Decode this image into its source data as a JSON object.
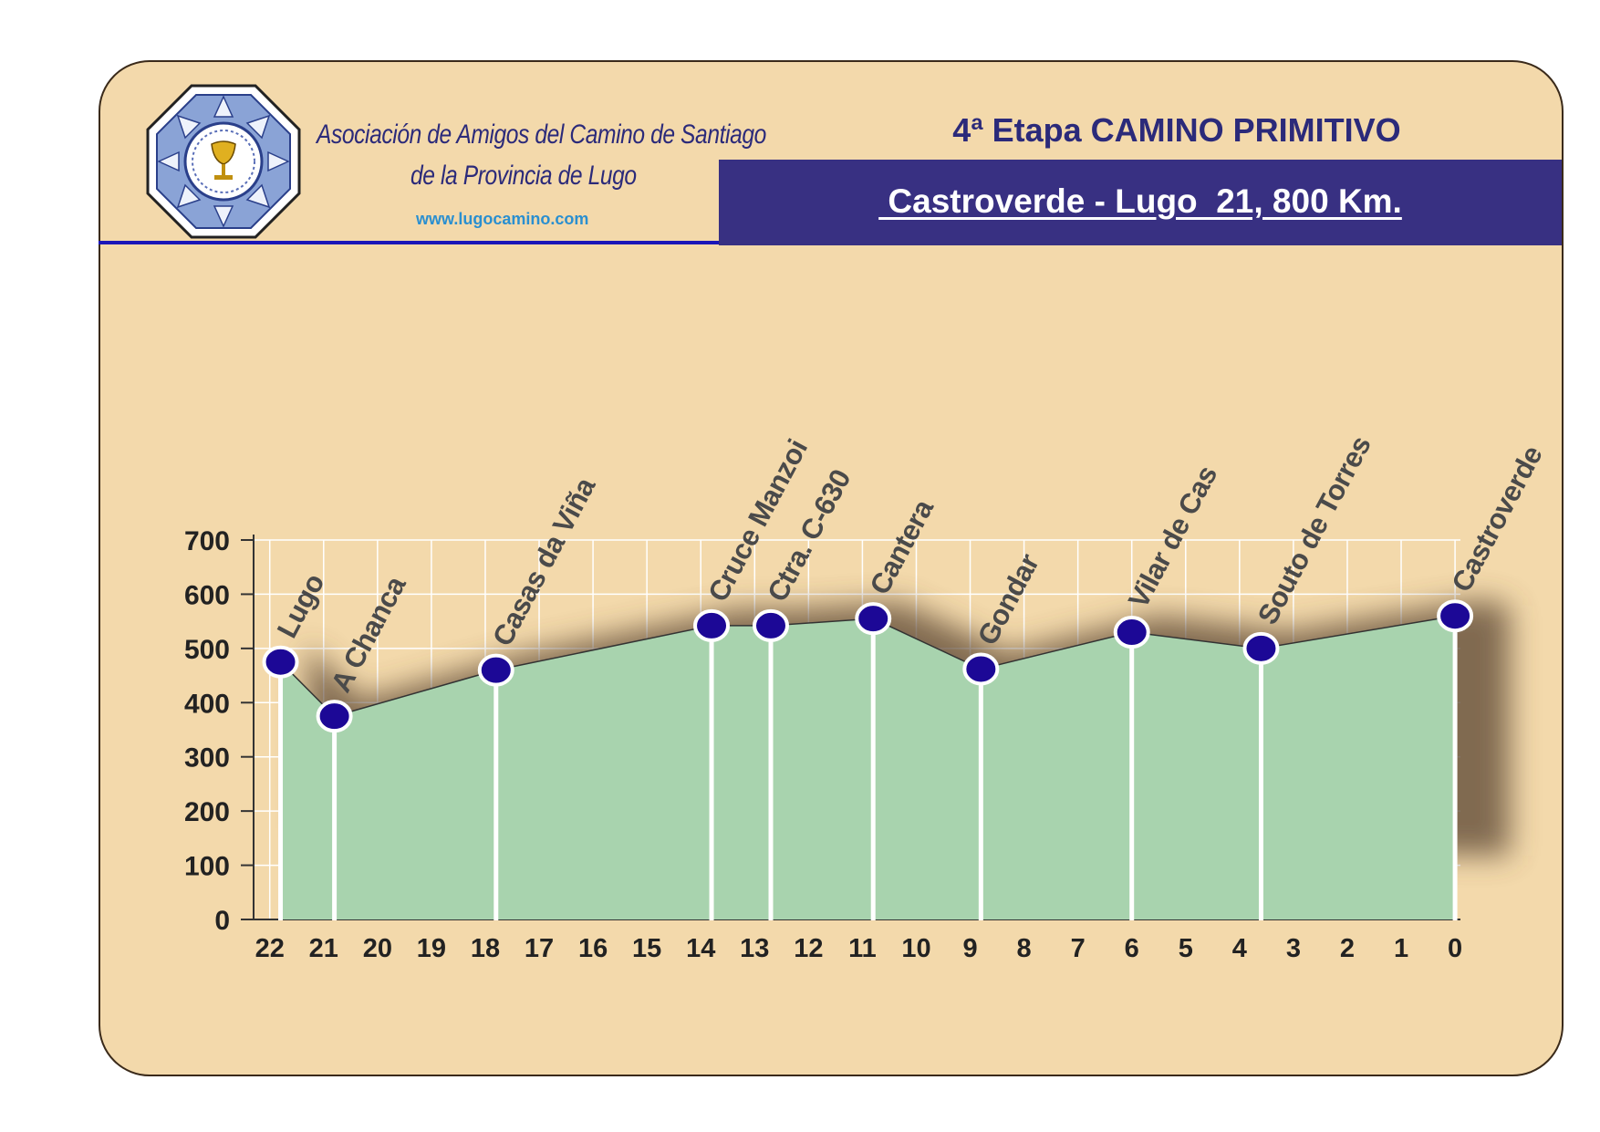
{
  "header": {
    "org_line1": "Asociación de Amigos del Camino de Santiago",
    "org_line2": "de la Provincia de Lugo",
    "website": "www.lugocamino.com",
    "stage_title": "4ª Etapa CAMINO PRIMITIVO",
    "route_title": " Castroverde - Lugo  21, 800 Km."
  },
  "colors": {
    "card_bg": "#f3d9ab",
    "band": "#383082",
    "area_fill": "#a8d3ae",
    "marker": "#1c0896",
    "title_text": "#2b2a7a"
  },
  "chart_data": {
    "type": "area",
    "xlabel": "",
    "ylabel": "",
    "xlim": [
      22.3,
      -0.1
    ],
    "ylim": [
      0,
      700
    ],
    "x_ticks": [
      22,
      21,
      20,
      19,
      18,
      17,
      16,
      15,
      14,
      13,
      12,
      11,
      10,
      9,
      8,
      7,
      6,
      5,
      4,
      3,
      2,
      1,
      0
    ],
    "y_ticks": [
      0,
      100,
      200,
      300,
      400,
      500,
      600,
      700
    ],
    "grid": true,
    "x_reversed": true,
    "points": [
      {
        "name": "Lugo",
        "km": 21.8,
        "elevation": 475
      },
      {
        "name": "A Chanca",
        "km": 20.8,
        "elevation": 375
      },
      {
        "name": "Casas da Viña",
        "km": 17.8,
        "elevation": 460
      },
      {
        "name": "Cruce Manzoi",
        "km": 13.8,
        "elevation": 542
      },
      {
        "name": "Ctra. C-630",
        "km": 12.7,
        "elevation": 542
      },
      {
        "name": "Cantera",
        "km": 10.8,
        "elevation": 555
      },
      {
        "name": "Gondar",
        "km": 8.8,
        "elevation": 462
      },
      {
        "name": "Vilar de Cas",
        "km": 6.0,
        "elevation": 530
      },
      {
        "name": "Souto de Torres",
        "km": 3.6,
        "elevation": 500
      },
      {
        "name": "Castroverde",
        "km": 0.0,
        "elevation": 560
      }
    ]
  }
}
